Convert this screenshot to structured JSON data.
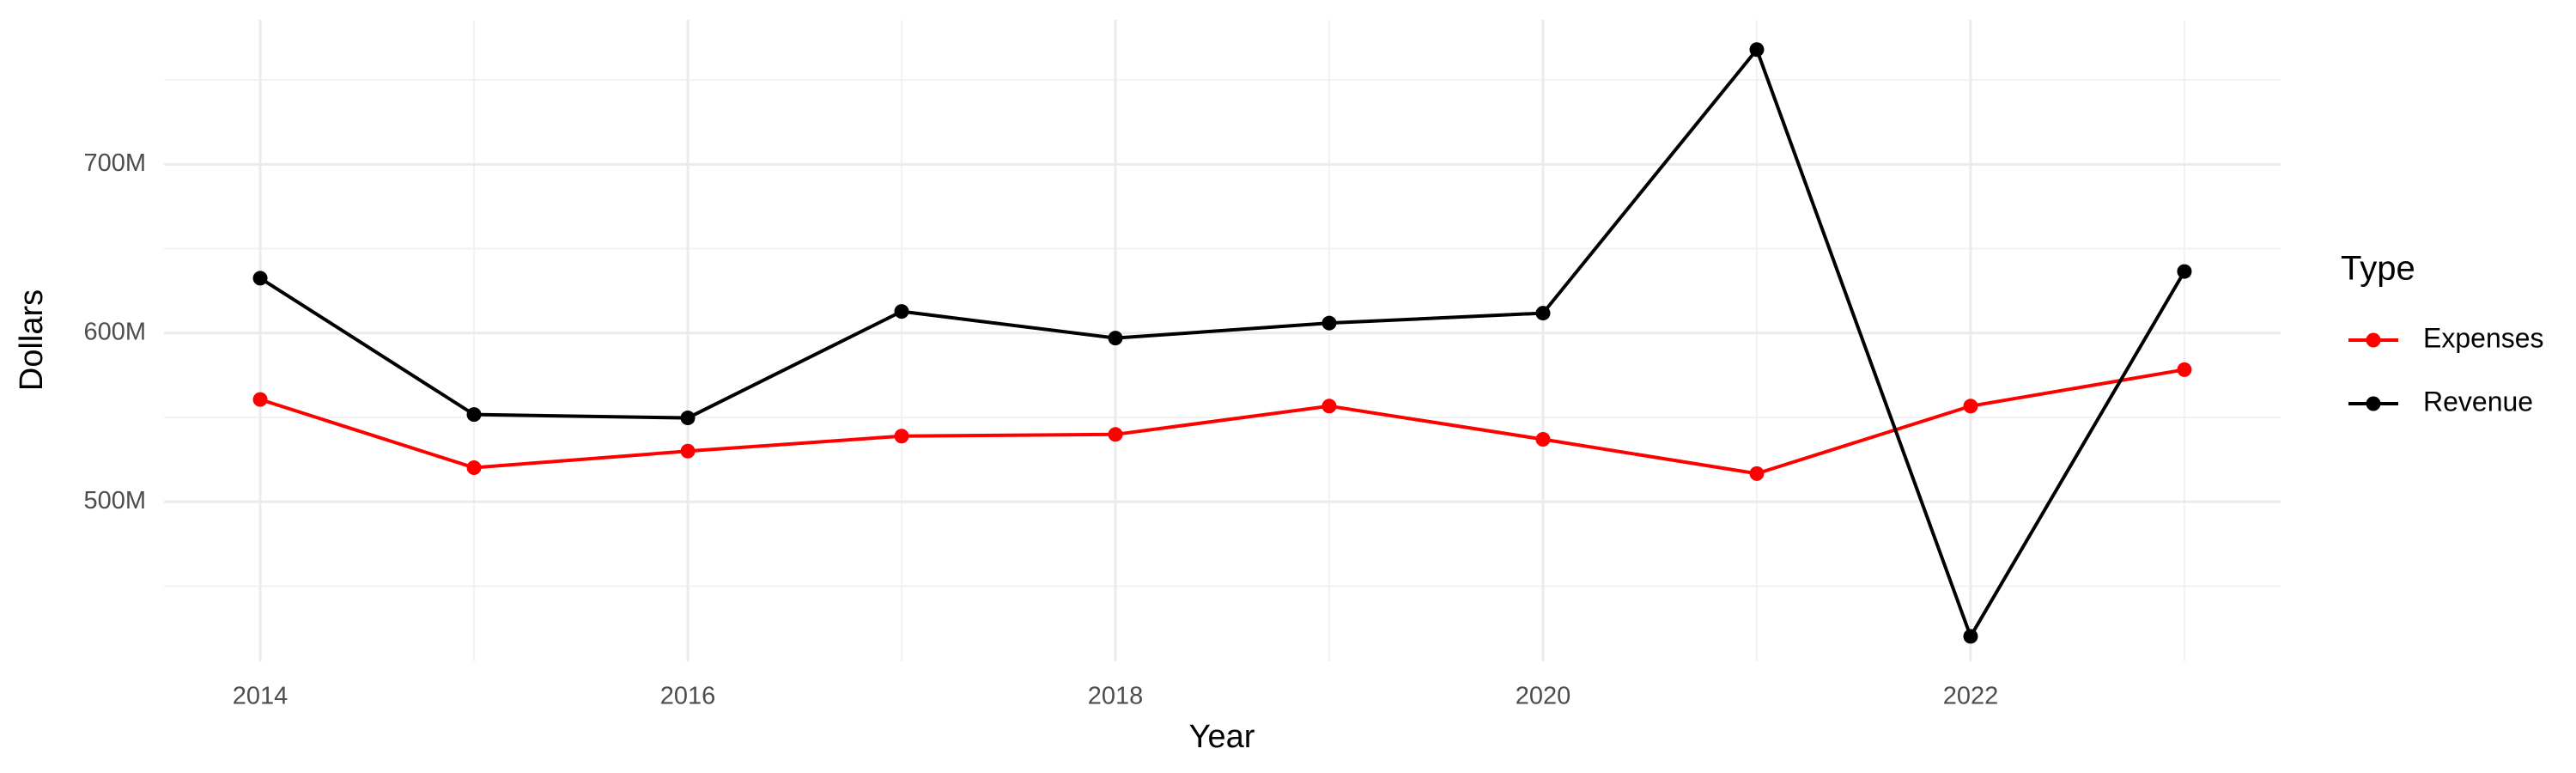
{
  "chart_data": {
    "type": "line",
    "x_label": "Year",
    "y_label": "Dollars",
    "legend_title": "Type",
    "x": [
      2014,
      2015,
      2016,
      2017,
      2018,
      2019,
      2020,
      2021,
      2022,
      2023
    ],
    "series": [
      {
        "name": "Expenses",
        "color": "#ff0000",
        "values": [
          560600000,
          520200000,
          530000000,
          538900000,
          539900000,
          556700000,
          537000000,
          516700000,
          556700000,
          578300000
        ]
      },
      {
        "name": "Revenue",
        "color": "#000000",
        "values": [
          632500000,
          551700000,
          549700000,
          612800000,
          597000000,
          605900000,
          611800000,
          768000000,
          420200000,
          636500000
        ]
      }
    ],
    "xlim": [
      2013.55,
      2023.45
    ],
    "xticks": [
      2014,
      2016,
      2018,
      2020,
      2022
    ],
    "ylim": [
      405400000,
      785700000
    ],
    "yticks": [
      {
        "value": 500000000,
        "label": "500M"
      },
      {
        "value": 600000000,
        "label": "600M"
      },
      {
        "value": 700000000,
        "label": "700M"
      }
    ],
    "grid": true,
    "legend": "right"
  }
}
